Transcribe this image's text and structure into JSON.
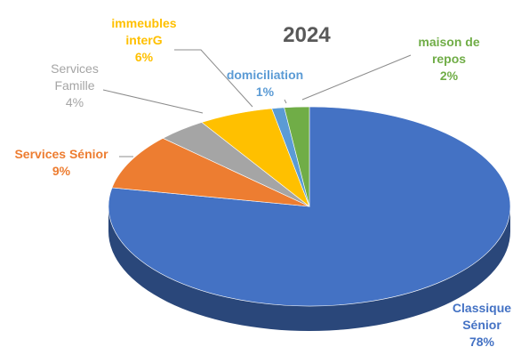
{
  "chart_data": {
    "type": "pie",
    "style": "3d-exploded",
    "title": "2024",
    "slices": [
      {
        "label": "Classique Sénior",
        "label_lines": [
          "Classique",
          "Sénior"
        ],
        "value": 78,
        "value_label": "78%",
        "color": "#4472C4"
      },
      {
        "label": "Services Sénior",
        "label_lines": [
          "Services Sénior"
        ],
        "value": 9,
        "value_label": "9%",
        "color": "#ED7D31"
      },
      {
        "label": "Services Famille",
        "label_lines": [
          "Services",
          "Famille"
        ],
        "value": 4,
        "value_label": "4%",
        "color": "#A5A5A5"
      },
      {
        "label": "immeubles interG",
        "label_lines": [
          "immeubles",
          "interG"
        ],
        "value": 6,
        "value_label": "6%",
        "color": "#FFC000"
      },
      {
        "label": "domiciliation",
        "label_lines": [
          "domiciliation"
        ],
        "value": 1,
        "value_label": "1%",
        "color": "#5B9BD5"
      },
      {
        "label": "maison de repos",
        "label_lines": [
          "maison de",
          "repos"
        ],
        "value": 2,
        "value_label": "2%",
        "color": "#70AD47"
      }
    ]
  }
}
